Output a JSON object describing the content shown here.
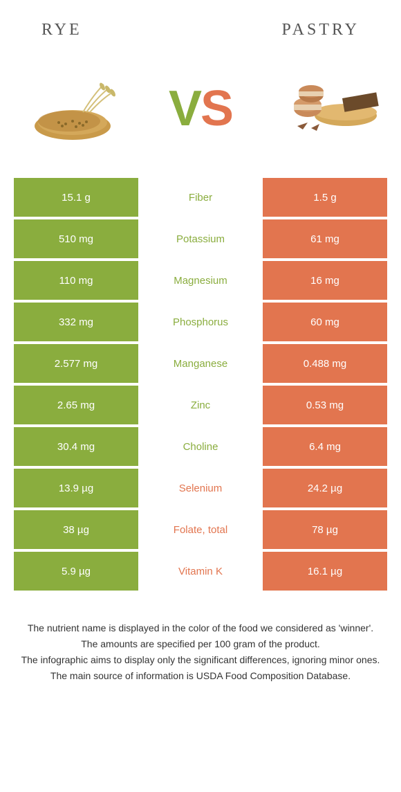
{
  "header": {
    "left_title": "Rye",
    "right_title": "Pastry"
  },
  "vs": {
    "v": "V",
    "s": "S"
  },
  "colors": {
    "left": "#8aad3e",
    "right": "#e2754f",
    "left_text": "#8aad3e",
    "right_text": "#e2754f"
  },
  "rows": [
    {
      "left": "15.1 g",
      "label": "Fiber",
      "right": "1.5 g",
      "winner": "left"
    },
    {
      "left": "510 mg",
      "label": "Potassium",
      "right": "61 mg",
      "winner": "left"
    },
    {
      "left": "110 mg",
      "label": "Magnesium",
      "right": "16 mg",
      "winner": "left"
    },
    {
      "left": "332 mg",
      "label": "Phosphorus",
      "right": "60 mg",
      "winner": "left"
    },
    {
      "left": "2.577 mg",
      "label": "Manganese",
      "right": "0.488 mg",
      "winner": "left"
    },
    {
      "left": "2.65 mg",
      "label": "Zinc",
      "right": "0.53 mg",
      "winner": "left"
    },
    {
      "left": "30.4 mg",
      "label": "Choline",
      "right": "6.4 mg",
      "winner": "left"
    },
    {
      "left": "13.9 µg",
      "label": "Selenium",
      "right": "24.2 µg",
      "winner": "right"
    },
    {
      "left": "38 µg",
      "label": "Folate, total",
      "right": "78 µg",
      "winner": "right"
    },
    {
      "left": "5.9 µg",
      "label": "Vitamin K",
      "right": "16.1 µg",
      "winner": "right"
    }
  ],
  "footer": {
    "line1": "The nutrient name is displayed in the color of the food we considered as 'winner'.",
    "line2": "The amounts are specified per 100 gram of the product.",
    "line3": "The infographic aims to display only the significant differences, ignoring minor ones.",
    "line4": "The main source of information is USDA Food Composition Database."
  }
}
